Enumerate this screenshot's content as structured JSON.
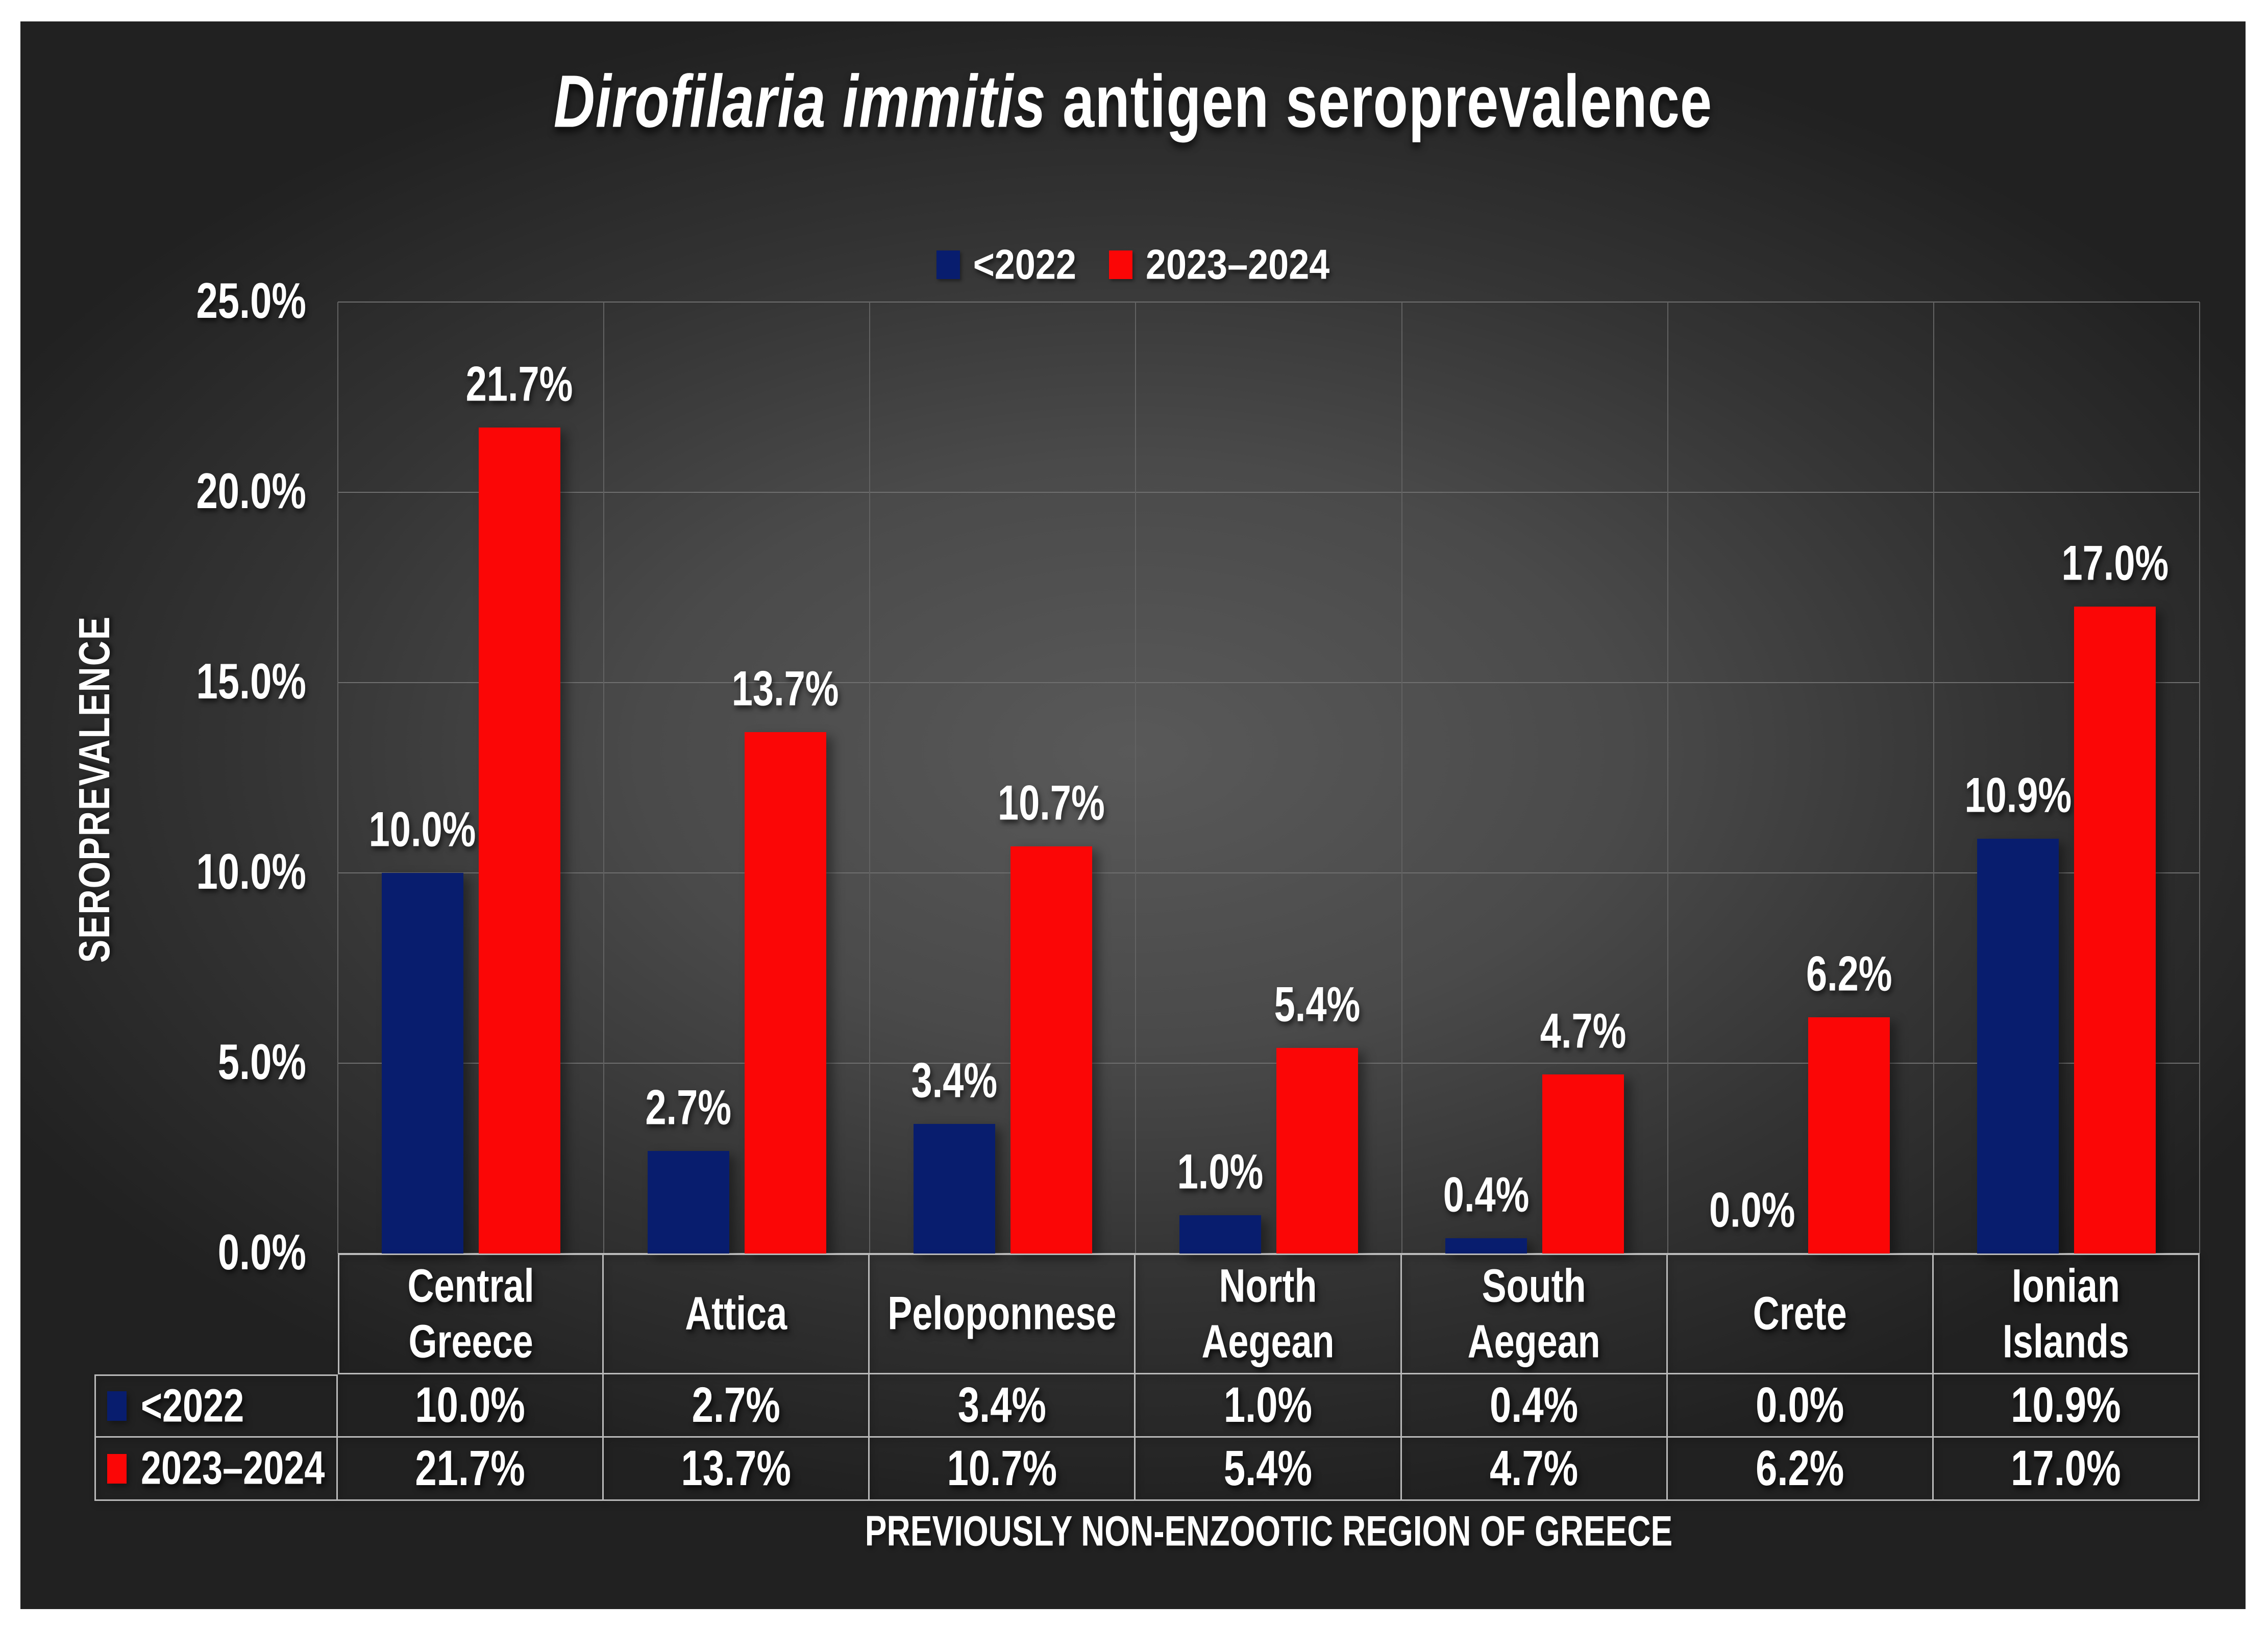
{
  "chart": {
    "title_italic": "Dirofilaria immitis",
    "title_regular": " antigen seroprevalence",
    "panel_background_center": "#595959",
    "panel_background_edge": "#212121",
    "text_color": "#ffffff",
    "gridline_color": "#6f6f6f",
    "table_border_color": "#b9b9b9"
  },
  "chart_data": {
    "type": "bar",
    "title": "Dirofilaria immitis antigen seroprevalence",
    "categories": [
      "Central Greece",
      "Attica",
      "Peloponnese",
      "North Aegean",
      "South Aegean",
      "Crete",
      "Ionian Islands"
    ],
    "series": [
      {
        "name": "<2022",
        "color": "#081d6e",
        "values": [
          10.0,
          2.7,
          3.4,
          1.0,
          0.4,
          0.0,
          10.9
        ],
        "labels": [
          "10.0%",
          "2.7%",
          "3.4%",
          "1.0%",
          "0.4%",
          "0.0%",
          "10.9%"
        ]
      },
      {
        "name": "2023–2024",
        "color": "#fb0606",
        "values": [
          21.7,
          13.7,
          10.7,
          5.4,
          4.7,
          6.2,
          17.0
        ],
        "labels": [
          "21.7%",
          "13.7%",
          "10.7%",
          "5.4%",
          "4.7%",
          "6.2%",
          "17.0%"
        ]
      }
    ],
    "ylabel": "SEROPREVALENCE",
    "xlabel": "PREVIOUSLY NON-ENZOOTIC REGION OF GREECE",
    "ylim": [
      0,
      25
    ],
    "ytick_step": 5,
    "ytick_labels": [
      "0.0%",
      "5.0%",
      "10.0%",
      "15.0%",
      "20.0%",
      "25.0%"
    ],
    "grid": true,
    "legend_position": "top",
    "data_table_shown": true
  }
}
